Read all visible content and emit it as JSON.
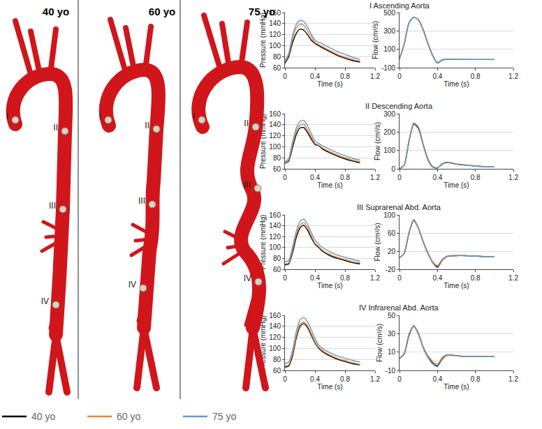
{
  "chart_data": [
    {
      "type": "line",
      "title": "I Ascending Aorta",
      "x_label": "Time (s)",
      "y_label": "Pressure (mmHg)",
      "x": [
        0,
        0.05,
        0.1,
        0.15,
        0.2,
        0.25,
        0.3,
        0.35,
        0.4,
        0.45,
        0.5,
        0.6,
        0.7,
        0.8,
        0.9,
        1.0
      ],
      "xlim": [
        0,
        1.2
      ],
      "xticks": [
        0,
        0.4,
        0.8,
        1.2
      ],
      "ylim": [
        60,
        160
      ],
      "yticks": [
        60,
        80,
        100,
        120,
        140,
        160
      ],
      "grid": true,
      "series": [
        {
          "name": "40 yo",
          "color": "#000000",
          "values": [
            68,
            80,
            105,
            122,
            130,
            128,
            120,
            110,
            104,
            100,
            96,
            89,
            82,
            77,
            73,
            70
          ]
        },
        {
          "name": "60 yo",
          "color": "#f0842c",
          "values": [
            70,
            83,
            112,
            132,
            139,
            137,
            127,
            116,
            106,
            102,
            98,
            91,
            84,
            79,
            75,
            72
          ]
        },
        {
          "name": "75 yo",
          "color": "#5b9bd5",
          "values": [
            72,
            86,
            118,
            138,
            146,
            144,
            134,
            121,
            110,
            106,
            103,
            96,
            89,
            84,
            79,
            75
          ]
        }
      ]
    },
    {
      "type": "line",
      "x_label": "Time (s)",
      "y_label": "Flow (cm³/s)",
      "x": [
        0,
        0.05,
        0.1,
        0.15,
        0.2,
        0.25,
        0.3,
        0.35,
        0.4,
        0.45,
        0.5,
        0.6,
        0.7,
        0.8,
        0.9,
        1.0
      ],
      "xlim": [
        0,
        1.2
      ],
      "xticks": [
        0,
        0.4,
        0.8,
        1.2
      ],
      "ylim": [
        -100,
        500
      ],
      "yticks": [
        -100,
        100,
        300,
        500
      ],
      "grid": true,
      "series": [
        {
          "name": "40 yo",
          "color": "#000000",
          "values": [
            -5,
            160,
            390,
            450,
            420,
            310,
            160,
            30,
            -50,
            -15,
            -10,
            -10,
            -12,
            -12,
            -12,
            -12
          ]
        },
        {
          "name": "60 yo",
          "color": "#f0842c",
          "values": [
            -5,
            155,
            385,
            448,
            425,
            315,
            165,
            35,
            -45,
            -12,
            -10,
            -10,
            -10,
            -12,
            -12,
            -12
          ]
        },
        {
          "name": "75 yo",
          "color": "#5b9bd5",
          "values": [
            -5,
            157,
            387,
            449,
            422,
            312,
            162,
            32,
            -48,
            -14,
            -10,
            -10,
            -11,
            -12,
            -12,
            -12
          ]
        }
      ]
    },
    {
      "type": "line",
      "title": "II Descending Aorta",
      "x_label": "Time (s)",
      "y_label": "Pressure (mmHg)",
      "x": [
        0,
        0.05,
        0.1,
        0.15,
        0.2,
        0.25,
        0.3,
        0.35,
        0.4,
        0.45,
        0.5,
        0.6,
        0.7,
        0.8,
        0.9,
        1.0
      ],
      "xlim": [
        0,
        1.2
      ],
      "xticks": [
        0,
        0.4,
        0.8,
        1.2
      ],
      "ylim": [
        60,
        160
      ],
      "yticks": [
        60,
        80,
        100,
        120,
        140,
        160
      ],
      "grid": true,
      "series": [
        {
          "name": "40 yo",
          "color": "#000000",
          "values": [
            70,
            74,
            98,
            122,
            134,
            135,
            126,
            114,
            104,
            102,
            96,
            89,
            83,
            78,
            74,
            71
          ]
        },
        {
          "name": "60 yo",
          "color": "#f0842c",
          "values": [
            71,
            76,
            103,
            128,
            139,
            141,
            131,
            118,
            106,
            103,
            98,
            91,
            85,
            80,
            76,
            73
          ]
        },
        {
          "name": "75 yo",
          "color": "#5b9bd5",
          "values": [
            73,
            79,
            108,
            134,
            146,
            148,
            138,
            124,
            110,
            106,
            102,
            95,
            89,
            84,
            79,
            76
          ]
        }
      ]
    },
    {
      "type": "line",
      "x_label": "Time (s)",
      "y_label": "Flow (cm³/s)",
      "x": [
        0,
        0.05,
        0.1,
        0.15,
        0.2,
        0.25,
        0.3,
        0.35,
        0.4,
        0.45,
        0.5,
        0.6,
        0.7,
        0.8,
        0.9,
        1.0
      ],
      "xlim": [
        0,
        1.2
      ],
      "xticks": [
        0,
        0.4,
        0.8,
        1.2
      ],
      "ylim": [
        0,
        300
      ],
      "yticks": [
        0,
        100,
        200,
        300
      ],
      "grid": true,
      "series": [
        {
          "name": "40 yo",
          "color": "#000000",
          "values": [
            0,
            20,
            150,
            245,
            220,
            130,
            50,
            10,
            5,
            25,
            35,
            25,
            20,
            15,
            12,
            10
          ]
        },
        {
          "name": "60 yo",
          "color": "#f0842c",
          "values": [
            0,
            22,
            155,
            250,
            228,
            135,
            55,
            12,
            6,
            28,
            37,
            27,
            21,
            16,
            13,
            10
          ]
        },
        {
          "name": "75 yo",
          "color": "#5b9bd5",
          "values": [
            0,
            20,
            152,
            248,
            225,
            132,
            52,
            11,
            5,
            26,
            36,
            26,
            20,
            15,
            12,
            10
          ]
        }
      ]
    },
    {
      "type": "line",
      "title": "III Suprarenal Abd. Aorta",
      "x_label": "Time (s)",
      "y_label": "Pressure (mmHg)",
      "x": [
        0,
        0.05,
        0.1,
        0.15,
        0.2,
        0.25,
        0.3,
        0.35,
        0.4,
        0.45,
        0.5,
        0.6,
        0.7,
        0.8,
        0.9,
        1.0
      ],
      "xlim": [
        0,
        1.2
      ],
      "xticks": [
        0,
        0.4,
        0.8,
        1.2
      ],
      "ylim": [
        60,
        160
      ],
      "yticks": [
        60,
        80,
        100,
        120,
        140,
        160
      ],
      "grid": true,
      "series": [
        {
          "name": "40 yo",
          "color": "#000000",
          "values": [
            68,
            70,
            90,
            118,
            136,
            141,
            132,
            118,
            106,
            100,
            93,
            85,
            80,
            76,
            72,
            70
          ]
        },
        {
          "name": "60 yo",
          "color": "#f0842c",
          "values": [
            70,
            72,
            95,
            124,
            141,
            146,
            137,
            122,
            108,
            102,
            95,
            87,
            82,
            78,
            74,
            72
          ]
        },
        {
          "name": "75 yo",
          "color": "#5b9bd5",
          "values": [
            74,
            76,
            100,
            130,
            148,
            152,
            143,
            128,
            114,
            106,
            100,
            92,
            86,
            82,
            78,
            75
          ]
        }
      ]
    },
    {
      "type": "line",
      "x_label": "Time (s)",
      "y_label": "Flow (cm³/s)",
      "x": [
        0,
        0.05,
        0.1,
        0.15,
        0.2,
        0.25,
        0.3,
        0.35,
        0.4,
        0.45,
        0.5,
        0.6,
        0.7,
        0.8,
        0.9,
        1.0
      ],
      "xlim": [
        0,
        1.2
      ],
      "xticks": [
        0,
        0.4,
        0.8,
        1.2
      ],
      "ylim": [
        -20,
        100
      ],
      "yticks": [
        -20,
        20,
        60,
        100
      ],
      "grid": true,
      "series": [
        {
          "name": "40 yo",
          "color": "#000000",
          "values": [
            5,
            15,
            60,
            88,
            70,
            40,
            15,
            -5,
            -15,
            0,
            8,
            10,
            10,
            9,
            8,
            8
          ]
        },
        {
          "name": "60 yo",
          "color": "#f0842c",
          "values": [
            5,
            16,
            62,
            90,
            72,
            42,
            17,
            -3,
            -12,
            2,
            9,
            11,
            10,
            9,
            8,
            8
          ]
        },
        {
          "name": "75 yo",
          "color": "#5b9bd5",
          "values": [
            5,
            15,
            61,
            89,
            70,
            40,
            14,
            -6,
            -17,
            -1,
            8,
            10,
            10,
            9,
            8,
            8
          ]
        }
      ]
    },
    {
      "type": "line",
      "title": "IV Infrarenal Abd. Aorta",
      "x_label": "Time (s)",
      "y_label": "Pressure (mmHg)",
      "x": [
        0,
        0.05,
        0.1,
        0.15,
        0.2,
        0.25,
        0.3,
        0.35,
        0.4,
        0.45,
        0.5,
        0.6,
        0.7,
        0.8,
        0.9,
        1.0
      ],
      "xlim": [
        0,
        1.2
      ],
      "xticks": [
        0,
        0.4,
        0.8,
        1.2
      ],
      "ylim": [
        60,
        160
      ],
      "yticks": [
        60,
        80,
        100,
        120,
        140,
        160
      ],
      "grid": true,
      "series": [
        {
          "name": "40 yo",
          "color": "#000000",
          "values": [
            66,
            68,
            86,
            118,
            140,
            145,
            138,
            124,
            110,
            100,
            94,
            86,
            80,
            76,
            72,
            70
          ]
        },
        {
          "name": "60 yo",
          "color": "#f0842c",
          "values": [
            68,
            70,
            90,
            122,
            144,
            148,
            141,
            127,
            112,
            102,
            96,
            88,
            82,
            78,
            74,
            71
          ]
        },
        {
          "name": "75 yo",
          "color": "#5b9bd5",
          "values": [
            73,
            75,
            96,
            130,
            152,
            156,
            148,
            134,
            118,
            106,
            100,
            92,
            86,
            82,
            78,
            75
          ]
        }
      ]
    },
    {
      "type": "line",
      "x_label": "Time (s)",
      "y_label": "Flow (cm³/s)",
      "x": [
        0,
        0.05,
        0.1,
        0.15,
        0.2,
        0.25,
        0.3,
        0.35,
        0.4,
        0.45,
        0.5,
        0.6,
        0.7,
        0.8,
        0.9,
        1.0
      ],
      "xlim": [
        0,
        1.2
      ],
      "xticks": [
        0,
        0.4,
        0.8,
        1.2
      ],
      "ylim": [
        -10,
        50
      ],
      "yticks": [
        -10,
        10,
        30,
        50
      ],
      "grid": true,
      "series": [
        {
          "name": "40 yo",
          "color": "#000000",
          "values": [
            3,
            8,
            28,
            38,
            30,
            15,
            5,
            -2,
            -5,
            3,
            7,
            6,
            5,
            5,
            5,
            5
          ]
        },
        {
          "name": "60 yo",
          "color": "#f0842c",
          "values": [
            3,
            9,
            30,
            39,
            31,
            16,
            6,
            0,
            -3,
            4,
            7,
            6,
            5,
            5,
            5,
            5
          ]
        },
        {
          "name": "75 yo",
          "color": "#5b9bd5",
          "values": [
            3,
            8,
            29,
            38,
            29,
            14,
            4,
            -3,
            -6,
            2,
            6,
            6,
            5,
            5,
            5,
            5
          ]
        }
      ]
    }
  ],
  "models": {
    "titles": [
      "40 yo",
      "60 yo",
      "75 yo"
    ],
    "site_labels": [
      "I",
      "II",
      "III",
      "IV"
    ]
  }
}
